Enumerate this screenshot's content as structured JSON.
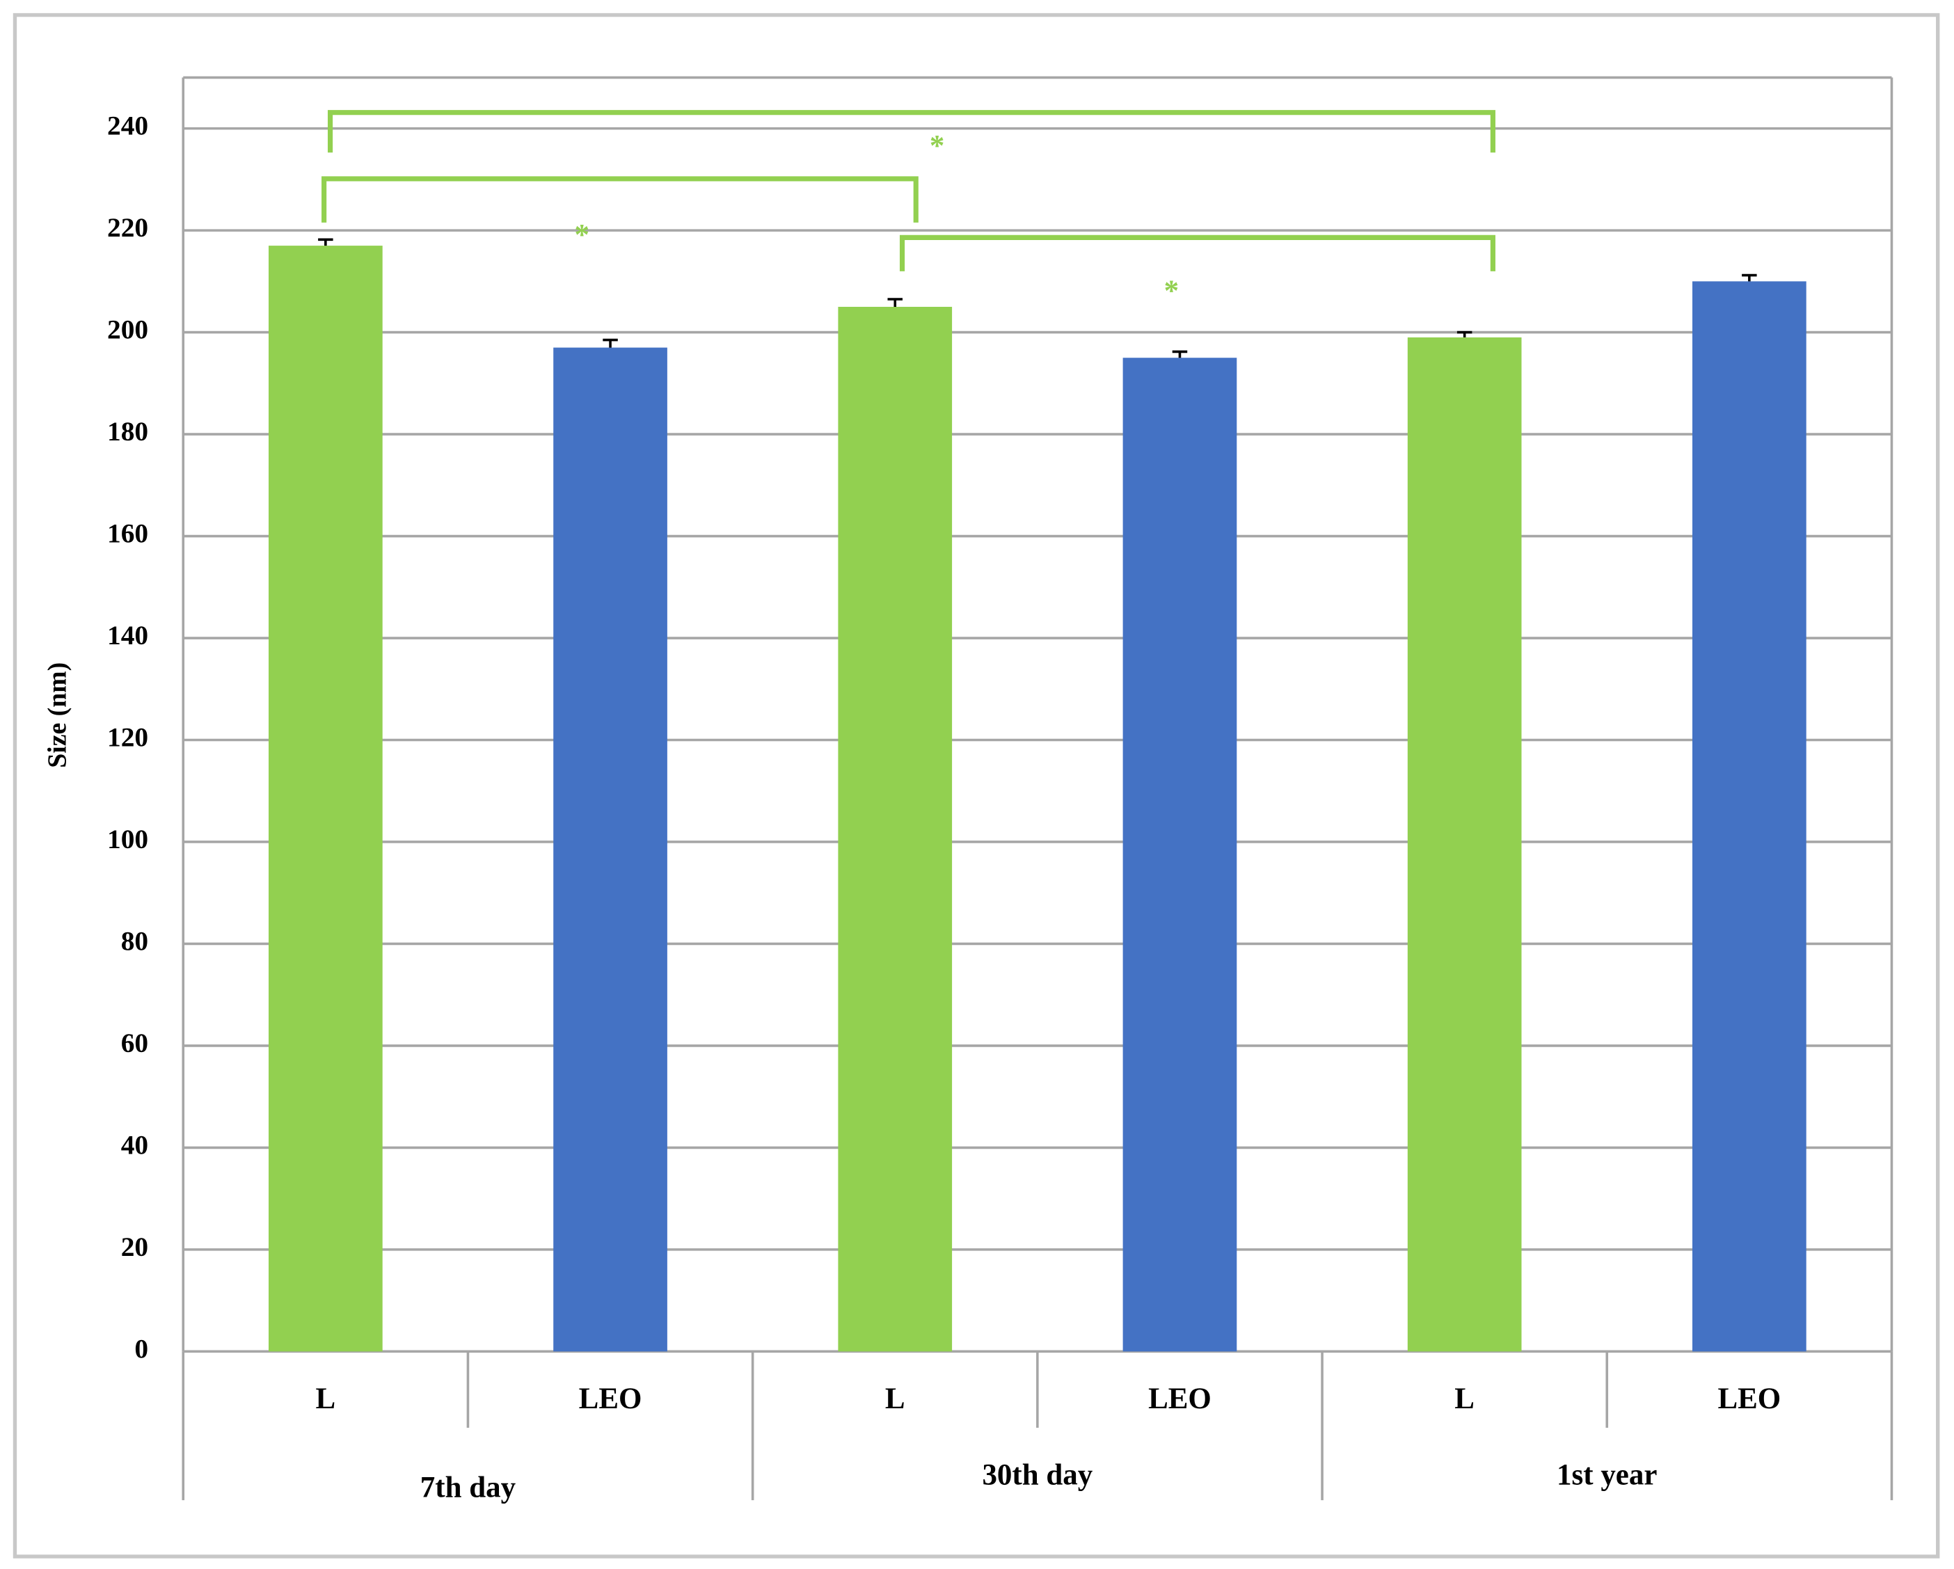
{
  "chart_data": {
    "type": "bar",
    "y_label": "Size (nm)",
    "categories": [
      "L",
      "LEO",
      "L",
      "LEO",
      "L",
      "LEO"
    ],
    "groups": [
      "7th day",
      "30th day",
      "1st year"
    ],
    "values": [
      217,
      197,
      205,
      195,
      199,
      210
    ],
    "errors": [
      1.2,
      1.5,
      1.5,
      1.2,
      1,
      1.2
    ],
    "colors": [
      "#92d050",
      "#4472c4",
      "#92d050",
      "#4472c4",
      "#92d050",
      "#4472c4"
    ],
    "ylim": [
      0,
      250
    ],
    "yticks": [
      0,
      20,
      40,
      60,
      80,
      100,
      120,
      140,
      160,
      180,
      200,
      220,
      240
    ],
    "grid": true,
    "annotations": [
      "*",
      "*",
      "*"
    ]
  }
}
